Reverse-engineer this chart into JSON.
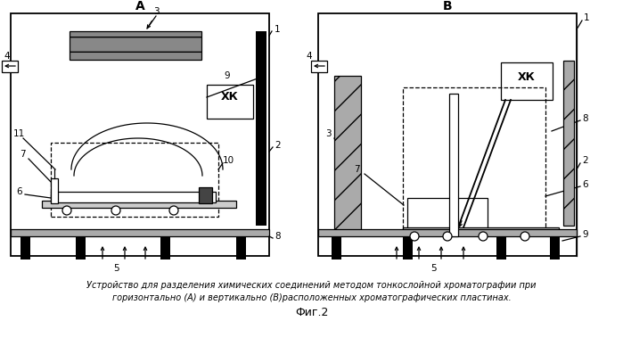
{
  "title_A": "А",
  "title_B": "В",
  "caption_line1": "Устройство для разделения химических соединений методом тонкослойной хроматографии при",
  "caption_line2": "горизонтально (А) и вертикально (В)расположенных хроматографических пластинах.",
  "fig_label": "Фиг.2",
  "bg_color": "#ffffff"
}
